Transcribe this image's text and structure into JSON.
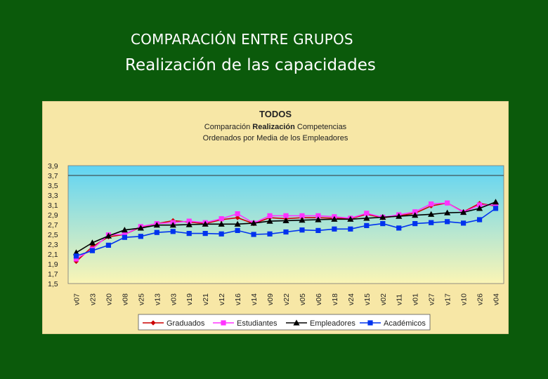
{
  "slide": {
    "title": "COMPARACIÓN ENTRE GRUPOS",
    "subtitle": "Realización de las capacidades"
  },
  "colors": {
    "page_background": "#0b5a0b",
    "chart_background": "#f7e7a6",
    "plot_gradient_top": "#5fd4f4",
    "plot_gradient_bottom": "#fbf5b5",
    "graduados": "#cc0000",
    "estudiantes": "#ff33ff",
    "empleadores": "#000000",
    "academicos": "#0033ee"
  },
  "chart_data": {
    "type": "line",
    "title": "TODOS",
    "subtitle_parts": [
      "Comparación ",
      "Realización",
      " Competencias"
    ],
    "subtitle_line2": "Ordenados por Media de los Empleadores",
    "categories": [
      "v07",
      "v23",
      "v20",
      "v08",
      "v25",
      "v13",
      "v03",
      "v19",
      "v21",
      "v12",
      "v16",
      "v14",
      "v09",
      "v22",
      "v05",
      "v06",
      "v18",
      "v24",
      "v15",
      "v02",
      "v11",
      "v01",
      "v27",
      "v17",
      "v10",
      "v26",
      "v04"
    ],
    "ylim": [
      1.5,
      3.9
    ],
    "y_ticks": [
      "3,9",
      "3,7",
      "3,5",
      "3,3",
      "3,1",
      "2,9",
      "2,7",
      "2,5",
      "2,3",
      "2,1",
      "1,9",
      "1,7",
      "1,5"
    ],
    "y_tick_values": [
      3.9,
      3.7,
      3.5,
      3.3,
      3.1,
      2.9,
      2.7,
      2.5,
      2.3,
      2.1,
      1.9,
      1.7,
      1.5
    ],
    "reference_line": 3.7,
    "legend_position": "bottom",
    "series": [
      {
        "name": "Graduados",
        "marker": "diamond",
        "color": "#cc0000",
        "values": [
          1.95,
          2.25,
          2.45,
          2.5,
          2.65,
          2.72,
          2.78,
          2.75,
          2.72,
          2.8,
          2.84,
          2.72,
          2.84,
          2.82,
          2.84,
          2.84,
          2.83,
          2.82,
          2.91,
          2.84,
          2.88,
          2.93,
          3.08,
          3.14,
          2.96,
          3.13,
          3.08
        ]
      },
      {
        "name": "Estudiantes",
        "marker": "square",
        "color": "#ff33ff",
        "values": [
          2.0,
          2.2,
          2.49,
          2.5,
          2.66,
          2.72,
          2.74,
          2.77,
          2.74,
          2.82,
          2.92,
          2.73,
          2.88,
          2.88,
          2.88,
          2.88,
          2.86,
          2.83,
          2.93,
          2.85,
          2.9,
          2.96,
          3.12,
          3.14,
          2.95,
          3.1,
          3.1
        ]
      },
      {
        "name": "Empleadores",
        "marker": "triangle",
        "color": "#000000",
        "values": [
          2.13,
          2.33,
          2.47,
          2.59,
          2.63,
          2.69,
          2.69,
          2.7,
          2.71,
          2.71,
          2.71,
          2.73,
          2.77,
          2.78,
          2.79,
          2.8,
          2.81,
          2.81,
          2.83,
          2.85,
          2.87,
          2.89,
          2.91,
          2.94,
          2.95,
          3.03,
          3.16
        ]
      },
      {
        "name": "Académicos",
        "marker": "square",
        "color": "#0033ee",
        "values": [
          2.06,
          2.17,
          2.28,
          2.44,
          2.46,
          2.54,
          2.56,
          2.52,
          2.52,
          2.51,
          2.58,
          2.5,
          2.51,
          2.55,
          2.59,
          2.58,
          2.61,
          2.61,
          2.68,
          2.72,
          2.63,
          2.72,
          2.74,
          2.76,
          2.73,
          2.8,
          3.03
        ]
      }
    ]
  }
}
